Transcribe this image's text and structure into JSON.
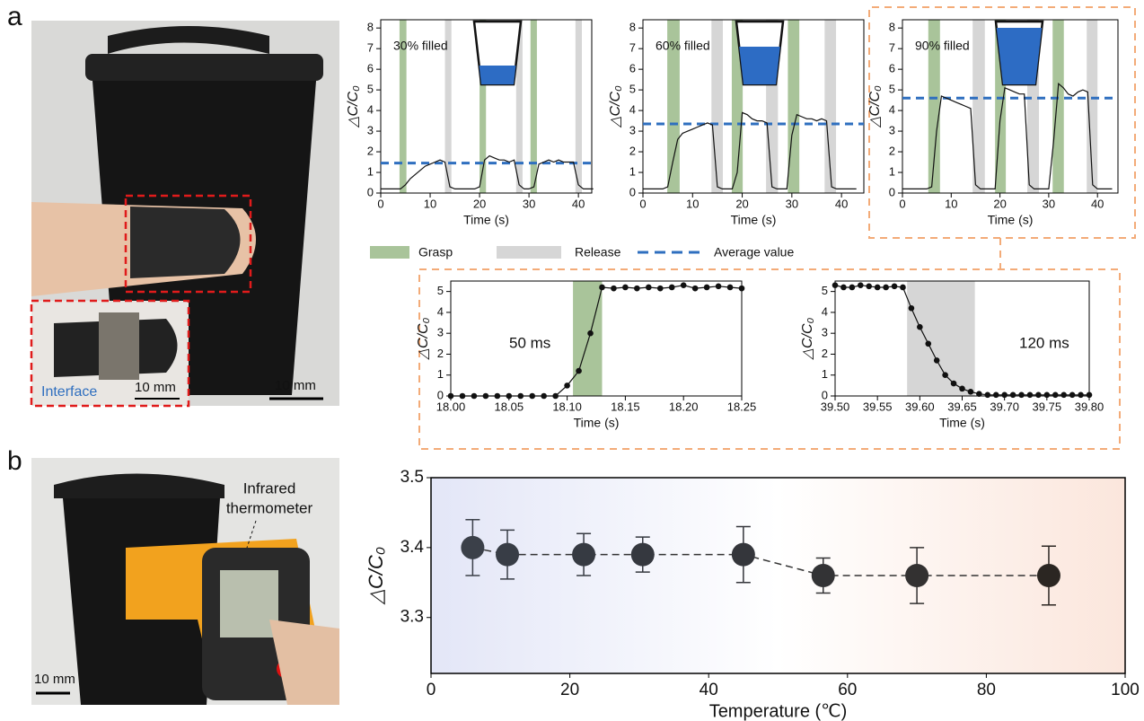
{
  "panel_labels": [
    "a",
    "b"
  ],
  "photo_a": {
    "inset_label": "Interface",
    "inset_scale_bar": "10 mm",
    "scale_bar": "10 mm"
  },
  "photo_b": {
    "label_lines": [
      "Infrared",
      "thermometer"
    ],
    "scale_bar": "10 mm"
  },
  "chart_data": [
    {
      "type": "line",
      "title": "30% filled",
      "x_label": "Time (s)",
      "y_label": "△C/C₀",
      "x": [
        0,
        1,
        2,
        3,
        4,
        5,
        6,
        7,
        8,
        9,
        10,
        11,
        12,
        13,
        14,
        15,
        16,
        17,
        18,
        19,
        20,
        21,
        22,
        23,
        24,
        25,
        26,
        27,
        28,
        29,
        30,
        31,
        32,
        33,
        34,
        35,
        36,
        37,
        38,
        39,
        40,
        41,
        42,
        43
      ],
      "values": [
        0.2,
        0.2,
        0.2,
        0.2,
        0.2,
        0.4,
        0.7,
        0.9,
        1.1,
        1.3,
        1.4,
        1.5,
        1.6,
        1.5,
        0.3,
        0.2,
        0.2,
        0.2,
        0.2,
        0.2,
        0.3,
        1.6,
        1.8,
        1.7,
        1.6,
        1.6,
        1.5,
        1.6,
        0.4,
        0.2,
        0.2,
        0.3,
        1.4,
        1.5,
        1.6,
        1.5,
        1.6,
        1.5,
        1.5,
        1.5,
        0.4,
        0.2,
        0.2,
        0.2
      ],
      "color": "#111111",
      "grasp_bands": [
        [
          3.8,
          5.2
        ],
        [
          20,
          21.3
        ],
        [
          30.3,
          31.6
        ]
      ],
      "release_bands": [
        [
          13,
          14.3
        ],
        [
          27.4,
          28.7
        ],
        [
          39.4,
          40.7
        ]
      ],
      "grasp_color": "#a9c49a",
      "release_color": "#d6d6d6",
      "average": 1.45,
      "average_color": "#2f6fbf",
      "legend_labels": [
        "Grasp",
        "Release",
        "Average value"
      ],
      "xlim": [
        0,
        42.7
      ],
      "ylim": [
        0,
        8.4
      ],
      "xticks": [
        0,
        10,
        20,
        30,
        40
      ],
      "yticks": [
        0,
        1,
        2,
        3,
        4,
        5,
        6,
        7,
        8
      ]
    },
    {
      "type": "line",
      "title": "60% filled",
      "x_label": "Time (s)",
      "y_label": "△C/C₀",
      "x": [
        0,
        1,
        2,
        3,
        4,
        5,
        6,
        7,
        8,
        9,
        10,
        11,
        12,
        13,
        14,
        15,
        16,
        17,
        18,
        19,
        20,
        21,
        22,
        23,
        24,
        25,
        26,
        27,
        28,
        29,
        30,
        31,
        32,
        33,
        34,
        35,
        36,
        37,
        38,
        39,
        40,
        41,
        42,
        43
      ],
      "values": [
        0.2,
        0.2,
        0.2,
        0.2,
        0.2,
        0.3,
        1.5,
        2.6,
        2.9,
        3.0,
        3.1,
        3.2,
        3.3,
        3.4,
        3.3,
        0.3,
        0.2,
        0.2,
        0.2,
        1.0,
        3.9,
        3.8,
        3.6,
        3.5,
        3.5,
        3.4,
        0.3,
        0.2,
        0.2,
        0.2,
        2.8,
        3.8,
        3.7,
        3.6,
        3.6,
        3.5,
        3.6,
        3.5,
        0.3,
        0.2,
        0.2,
        0.2,
        0.2,
        0.2
      ],
      "color": "#111111",
      "grasp_bands": [
        [
          4.9,
          7.4
        ],
        [
          17.9,
          20.1
        ],
        [
          29.2,
          31.5
        ]
      ],
      "release_bands": [
        [
          13.8,
          16.1
        ],
        [
          24.8,
          27.2
        ],
        [
          36.6,
          38.9
        ]
      ],
      "grasp_color": "#a9c49a",
      "release_color": "#d6d6d6",
      "average": 3.35,
      "average_color": "#2f6fbf",
      "xlim": [
        0,
        44.5
      ],
      "ylim": [
        0,
        8.4
      ],
      "xticks": [
        0,
        10,
        20,
        30,
        40
      ],
      "yticks": [
        0,
        1,
        2,
        3,
        4,
        5,
        6,
        7,
        8
      ]
    },
    {
      "type": "line",
      "title": "90% filled",
      "x_label": "Time (s)",
      "y_label": "△C/C₀",
      "x": [
        0,
        1,
        2,
        3,
        4,
        5,
        6,
        7,
        8,
        9,
        10,
        11,
        12,
        13,
        14,
        15,
        16,
        17,
        18,
        19,
        20,
        21,
        22,
        23,
        24,
        25,
        26,
        27,
        28,
        29,
        30,
        31,
        32,
        33,
        34,
        35,
        36,
        37,
        38,
        39,
        40,
        41,
        42,
        43
      ],
      "values": [
        0.2,
        0.2,
        0.2,
        0.2,
        0.2,
        0.2,
        0.3,
        3.0,
        4.7,
        4.6,
        4.5,
        4.4,
        4.3,
        4.2,
        4.1,
        0.4,
        0.2,
        0.2,
        0.2,
        0.2,
        3.5,
        5.1,
        5.0,
        4.9,
        4.8,
        4.8,
        0.4,
        0.2,
        0.2,
        0.2,
        0.2,
        2.5,
        5.3,
        5.1,
        4.8,
        4.7,
        4.9,
        5.0,
        4.9,
        0.4,
        0.2,
        0.2,
        0.2,
        0.2
      ],
      "color": "#111111",
      "grasp_bands": [
        [
          5.3,
          7.7
        ],
        [
          19,
          21.2
        ],
        [
          30.8,
          33.1
        ]
      ],
      "release_bands": [
        [
          14.4,
          16.9
        ],
        [
          25.6,
          28
        ],
        [
          37.8,
          40
        ]
      ],
      "grasp_color": "#a9c49a",
      "release_color": "#d6d6d6",
      "average": 4.6,
      "average_color": "#2f6fbf",
      "xlim": [
        0,
        44.2
      ],
      "ylim": [
        0,
        8.4
      ],
      "xticks": [
        0,
        10,
        20,
        30,
        40
      ],
      "yticks": [
        0,
        1,
        2,
        3,
        4,
        5,
        6,
        7,
        8
      ]
    },
    {
      "type": "line",
      "markers": true,
      "annotation": "50 ms",
      "x_label": "Time (s)",
      "y_label": "△C/C₀",
      "x": [
        18.0,
        18.01,
        18.02,
        18.03,
        18.04,
        18.05,
        18.06,
        18.07,
        18.08,
        18.09,
        18.1,
        18.11,
        18.12,
        18.13,
        18.14,
        18.15,
        18.16,
        18.17,
        18.18,
        18.19,
        18.2,
        18.21,
        18.22,
        18.23,
        18.24,
        18.25
      ],
      "values": [
        0,
        0,
        0,
        0,
        0,
        0,
        0,
        0,
        0,
        0,
        0.5,
        1.2,
        3.0,
        5.2,
        5.15,
        5.2,
        5.15,
        5.2,
        5.15,
        5.2,
        5.3,
        5.15,
        5.2,
        5.25,
        5.2,
        5.15
      ],
      "color": "#111111",
      "grasp_bands": [
        [
          18.105,
          18.13
        ]
      ],
      "grasp_color": "#a9c49a",
      "xlim": [
        18.0,
        18.25
      ],
      "ylim": [
        0,
        5.5
      ],
      "xticks": [
        {
          "value": 18,
          "label": "18.00"
        },
        {
          "value": 18.05,
          "label": "18.05"
        },
        {
          "value": 18.1,
          "label": "18.10"
        },
        {
          "value": 18.15,
          "label": "18.15"
        },
        {
          "value": 18.2,
          "label": "18.20"
        },
        {
          "value": 18.25,
          "label": "18.25"
        }
      ],
      "yticks": [
        0,
        1,
        2,
        3,
        4,
        5
      ]
    },
    {
      "type": "line",
      "markers": true,
      "annotation": "120 ms",
      "x_label": "Time (s)",
      "y_label": "△C/C₀",
      "x": [
        39.5,
        39.51,
        39.52,
        39.53,
        39.54,
        39.55,
        39.56,
        39.57,
        39.58,
        39.59,
        39.6,
        39.61,
        39.62,
        39.63,
        39.64,
        39.65,
        39.66,
        39.67,
        39.68,
        39.69,
        39.7,
        39.71,
        39.72,
        39.73,
        39.74,
        39.75,
        39.76,
        39.77,
        39.78,
        39.79,
        39.8
      ],
      "values": [
        5.3,
        5.2,
        5.2,
        5.3,
        5.25,
        5.2,
        5.2,
        5.25,
        5.2,
        4.2,
        3.3,
        2.5,
        1.7,
        1.0,
        0.6,
        0.35,
        0.2,
        0.1,
        0.05,
        0.05,
        0.05,
        0.05,
        0.05,
        0.05,
        0.05,
        0.05,
        0.05,
        0.05,
        0.05,
        0.05,
        0.05
      ],
      "color": "#111111",
      "release_bands": [
        [
          39.585,
          39.665
        ]
      ],
      "release_color": "#d6d6d6",
      "xlim": [
        39.5,
        39.8
      ],
      "ylim": [
        0,
        5.5
      ],
      "xticks": [
        {
          "value": 39.5,
          "label": "39.50"
        },
        {
          "value": 39.55,
          "label": "39.55"
        },
        {
          "value": 39.6,
          "label": "39.60"
        },
        {
          "value": 39.65,
          "label": "39.65"
        },
        {
          "value": 39.7,
          "label": "39.70"
        },
        {
          "value": 39.75,
          "label": "39.75"
        },
        {
          "value": 39.8,
          "label": "39.80"
        }
      ],
      "yticks": [
        0,
        1,
        2,
        3,
        4,
        5
      ]
    },
    {
      "type": "scatter",
      "x_label": "Temperature (℃)",
      "y_label": "△C/C₀",
      "x": [
        6,
        11,
        22,
        30.5,
        45,
        56.5,
        70,
        89
      ],
      "values": [
        3.4,
        3.39,
        3.39,
        3.39,
        3.39,
        3.36,
        3.36,
        3.36
      ],
      "errors": [
        0.04,
        0.035,
        0.03,
        0.025,
        0.04,
        0.025,
        0.04,
        0.042
      ],
      "colors": [
        "#3b4049",
        "#383d46",
        "#363a42",
        "#35383f",
        "#34363b",
        "#333335",
        "#333131",
        "#2b2622"
      ],
      "xlim": [
        0,
        100
      ],
      "ylim": [
        3.22,
        3.5
      ],
      "xticks": [
        0,
        20,
        40,
        60,
        80,
        100
      ],
      "yticks": [
        3.3,
        3.4,
        3.5
      ]
    }
  ]
}
